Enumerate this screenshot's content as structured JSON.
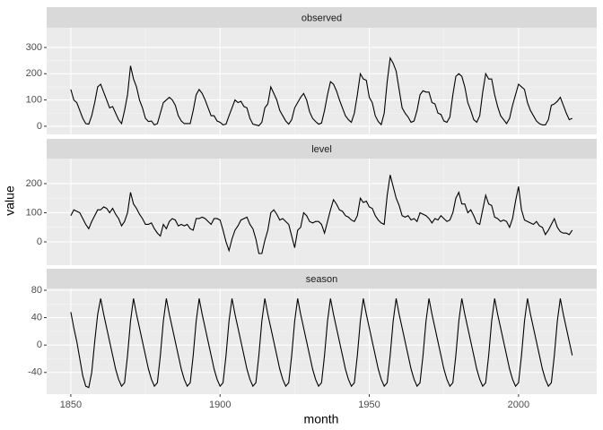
{
  "chart_data": {
    "type": "line",
    "xlabel": "month",
    "ylabel": "value",
    "x": [
      1850,
      1851,
      1852,
      1853,
      1854,
      1855,
      1856,
      1857,
      1858,
      1859,
      1860,
      1861,
      1862,
      1863,
      1864,
      1865,
      1866,
      1867,
      1868,
      1869,
      1870,
      1871,
      1872,
      1873,
      1874,
      1875,
      1876,
      1877,
      1878,
      1879,
      1880,
      1881,
      1882,
      1883,
      1884,
      1885,
      1886,
      1887,
      1888,
      1889,
      1890,
      1891,
      1892,
      1893,
      1894,
      1895,
      1896,
      1897,
      1898,
      1899,
      1900,
      1901,
      1902,
      1903,
      1904,
      1905,
      1906,
      1907,
      1908,
      1909,
      1910,
      1911,
      1912,
      1913,
      1914,
      1915,
      1916,
      1917,
      1918,
      1919,
      1920,
      1921,
      1922,
      1923,
      1924,
      1925,
      1926,
      1927,
      1928,
      1929,
      1930,
      1931,
      1932,
      1933,
      1934,
      1935,
      1936,
      1937,
      1938,
      1939,
      1940,
      1941,
      1942,
      1943,
      1944,
      1945,
      1946,
      1947,
      1948,
      1949,
      1950,
      1951,
      1952,
      1953,
      1954,
      1955,
      1956,
      1957,
      1958,
      1959,
      1960,
      1961,
      1962,
      1963,
      1964,
      1965,
      1966,
      1967,
      1968,
      1969,
      1970,
      1971,
      1972,
      1973,
      1974,
      1975,
      1976,
      1977,
      1978,
      1979,
      1980,
      1981,
      1982,
      1983,
      1984,
      1985,
      1986,
      1987,
      1988,
      1989,
      1990,
      1991,
      1992,
      1993,
      1994,
      1995,
      1996,
      1997,
      1998,
      1999,
      2000,
      2001,
      2002,
      2003,
      2004,
      2005,
      2006,
      2007,
      2008,
      2009,
      2010,
      2011,
      2012,
      2013,
      2014,
      2015,
      2016,
      2017,
      2018
    ],
    "xlim": [
      1841.9,
      2026.2
    ],
    "xticks": [
      1850,
      1900,
      1950,
      2000
    ],
    "grid": true,
    "color": "#000000",
    "panels": [
      {
        "title": "observed",
        "ylim": [
          -31,
          375
        ],
        "yticks": [
          0,
          100,
          200,
          300
        ],
        "values": [
          140,
          100,
          90,
          60,
          30,
          10,
          8,
          40,
          90,
          150,
          160,
          130,
          100,
          70,
          75,
          50,
          25,
          10,
          60,
          120,
          230,
          180,
          150,
          100,
          70,
          30,
          18,
          20,
          5,
          10,
          50,
          90,
          100,
          110,
          100,
          80,
          40,
          20,
          10,
          10,
          10,
          60,
          120,
          140,
          125,
          100,
          70,
          40,
          40,
          20,
          15,
          5,
          8,
          40,
          70,
          100,
          90,
          95,
          75,
          70,
          30,
          8,
          5,
          2,
          15,
          70,
          85,
          150,
          125,
          100,
          60,
          40,
          20,
          8,
          25,
          70,
          90,
          110,
          125,
          100,
          55,
          30,
          18,
          8,
          12,
          60,
          120,
          170,
          160,
          135,
          100,
          70,
          40,
          25,
          15,
          50,
          120,
          200,
          180,
          175,
          110,
          90,
          40,
          18,
          6,
          50,
          170,
          260,
          240,
          210,
          140,
          70,
          50,
          35,
          15,
          20,
          60,
          120,
          135,
          130,
          130,
          90,
          85,
          50,
          45,
          20,
          15,
          35,
          120,
          190,
          200,
          190,
          150,
          90,
          60,
          25,
          15,
          40,
          130,
          200,
          180,
          180,
          120,
          75,
          40,
          25,
          10,
          30,
          80,
          120,
          160,
          150,
          140,
          90,
          60,
          40,
          20,
          10,
          5,
          5,
          25,
          80,
          85,
          95,
          110,
          80,
          50,
          25,
          30
        ]
      },
      {
        "title": "level",
        "ylim": [
          -80,
          286
        ],
        "yticks": [
          0,
          100,
          200
        ],
        "values": [
          90,
          110,
          105,
          100,
          80,
          60,
          45,
          70,
          90,
          110,
          110,
          120,
          115,
          100,
          115,
          95,
          80,
          55,
          70,
          100,
          170,
          130,
          115,
          95,
          80,
          60,
          60,
          65,
          45,
          30,
          20,
          60,
          45,
          70,
          80,
          75,
          55,
          60,
          55,
          60,
          45,
          40,
          80,
          80,
          85,
          80,
          70,
          60,
          80,
          80,
          75,
          40,
          0,
          -30,
          10,
          40,
          55,
          75,
          80,
          85,
          60,
          45,
          10,
          -40,
          -40,
          5,
          40,
          100,
          110,
          95,
          75,
          80,
          70,
          60,
          20,
          -20,
          40,
          50,
          100,
          90,
          70,
          65,
          70,
          70,
          60,
          30,
          70,
          110,
          145,
          130,
          110,
          105,
          90,
          85,
          75,
          70,
          90,
          150,
          135,
          140,
          120,
          115,
          90,
          75,
          65,
          60,
          160,
          230,
          190,
          150,
          125,
          90,
          85,
          90,
          75,
          80,
          70,
          100,
          95,
          90,
          80,
          65,
          80,
          75,
          90,
          80,
          70,
          75,
          100,
          150,
          170,
          130,
          130,
          100,
          110,
          90,
          65,
          60,
          110,
          160,
          130,
          125,
          85,
          80,
          70,
          75,
          70,
          50,
          80,
          140,
          190,
          110,
          75,
          70,
          65,
          60,
          70,
          55,
          50,
          25,
          40,
          60,
          80,
          50,
          35,
          30,
          30,
          25,
          40
        ]
      },
      {
        "title": "season",
        "ylim": [
          -71.7,
          82.6
        ],
        "yticks": [
          -40,
          0,
          40,
          80
        ],
        "values": [
          48,
          25,
          5,
          -20,
          -45,
          -60,
          -62,
          -40,
          5,
          45,
          68,
          45,
          25,
          5,
          -15,
          -35,
          -50,
          -60,
          -55,
          -15,
          35,
          68,
          45,
          25,
          5,
          -15,
          -35,
          -50,
          -60,
          -55,
          -15,
          35,
          68,
          45,
          25,
          5,
          -15,
          -35,
          -50,
          -60,
          -55,
          -15,
          35,
          68,
          45,
          25,
          5,
          -15,
          -35,
          -50,
          -60,
          -55,
          -15,
          35,
          68,
          45,
          25,
          5,
          -15,
          -35,
          -50,
          -60,
          -55,
          -15,
          35,
          68,
          45,
          25,
          5,
          -15,
          -35,
          -50,
          -60,
          -55,
          -15,
          35,
          68,
          45,
          25,
          5,
          -15,
          -35,
          -50,
          -60,
          -55,
          -15,
          35,
          68,
          45,
          25,
          5,
          -15,
          -35,
          -50,
          -60,
          -55,
          -15,
          35,
          68,
          45,
          25,
          5,
          -15,
          -35,
          -50,
          -60,
          -55,
          -15,
          35,
          68,
          45,
          25,
          5,
          -15,
          -35,
          -50,
          -60,
          -55,
          -15,
          35,
          68,
          45,
          25,
          5,
          -15,
          -35,
          -50,
          -60,
          -55,
          -15,
          35,
          68,
          45,
          25,
          5,
          -15,
          -35,
          -50,
          -60,
          -55,
          -15,
          35,
          68,
          45,
          25,
          5,
          -15,
          -35,
          -50,
          -60,
          -55,
          -15,
          35,
          68,
          45,
          25,
          5,
          -15,
          -35,
          -50,
          -60,
          -55,
          -15,
          35,
          68,
          45,
          25,
          5,
          -15
        ]
      }
    ]
  }
}
